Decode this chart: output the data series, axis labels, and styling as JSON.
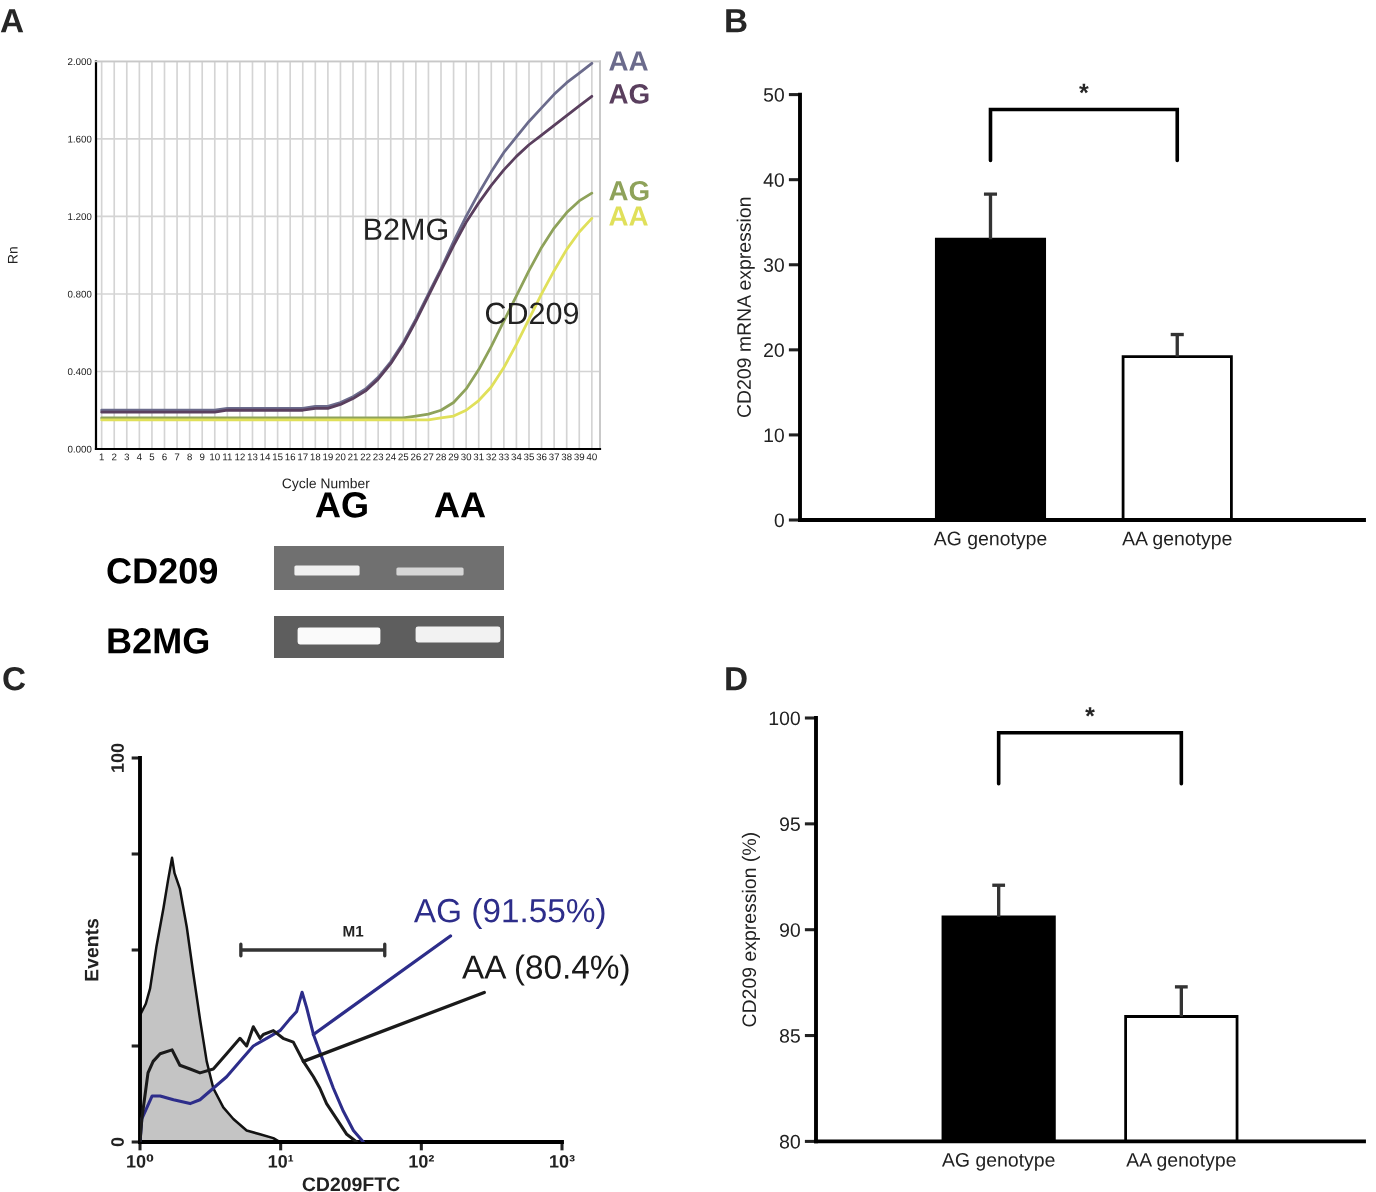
{
  "chart_data": [
    {
      "type": "line",
      "title": "A",
      "xlabel": "Cycle Number",
      "ylabel": "Rn",
      "x": [
        1,
        2,
        3,
        4,
        5,
        6,
        7,
        8,
        9,
        10,
        11,
        12,
        13,
        14,
        15,
        16,
        17,
        18,
        19,
        20,
        21,
        22,
        23,
        24,
        25,
        26,
        27,
        28,
        29,
        30,
        31,
        32,
        33,
        34,
        35,
        36,
        37,
        38,
        39,
        40
      ],
      "series": [
        {
          "name": "AA",
          "color": "#6b6b8c",
          "values": [
            0.2,
            0.2,
            0.2,
            0.2,
            0.2,
            0.2,
            0.2,
            0.2,
            0.2,
            0.2,
            0.21,
            0.21,
            0.21,
            0.21,
            0.21,
            0.21,
            0.21,
            0.22,
            0.22,
            0.24,
            0.27,
            0.31,
            0.37,
            0.45,
            0.55,
            0.67,
            0.8,
            0.93,
            1.07,
            1.2,
            1.32,
            1.43,
            1.53,
            1.61,
            1.69,
            1.76,
            1.83,
            1.89,
            1.94,
            1.99
          ]
        },
        {
          "name": "AG",
          "color": "#5a3f5e",
          "values": [
            0.19,
            0.19,
            0.19,
            0.19,
            0.19,
            0.19,
            0.19,
            0.19,
            0.19,
            0.19,
            0.2,
            0.2,
            0.2,
            0.2,
            0.2,
            0.2,
            0.2,
            0.21,
            0.21,
            0.23,
            0.26,
            0.3,
            0.36,
            0.44,
            0.54,
            0.66,
            0.79,
            0.92,
            1.05,
            1.17,
            1.27,
            1.36,
            1.44,
            1.51,
            1.57,
            1.62,
            1.67,
            1.72,
            1.77,
            1.82
          ]
        },
        {
          "name": "AG",
          "color": "#8ea25a",
          "values": [
            0.16,
            0.16,
            0.16,
            0.16,
            0.16,
            0.16,
            0.16,
            0.16,
            0.16,
            0.16,
            0.16,
            0.16,
            0.16,
            0.16,
            0.16,
            0.16,
            0.16,
            0.16,
            0.16,
            0.16,
            0.16,
            0.16,
            0.16,
            0.16,
            0.16,
            0.17,
            0.18,
            0.2,
            0.24,
            0.31,
            0.41,
            0.53,
            0.66,
            0.79,
            0.92,
            1.04,
            1.14,
            1.22,
            1.28,
            1.32
          ]
        },
        {
          "name": "AA",
          "color": "#e0e05a",
          "values": [
            0.15,
            0.15,
            0.15,
            0.15,
            0.15,
            0.15,
            0.15,
            0.15,
            0.15,
            0.15,
            0.15,
            0.15,
            0.15,
            0.15,
            0.15,
            0.15,
            0.15,
            0.15,
            0.15,
            0.15,
            0.15,
            0.15,
            0.15,
            0.15,
            0.15,
            0.15,
            0.15,
            0.16,
            0.17,
            0.2,
            0.25,
            0.32,
            0.42,
            0.54,
            0.67,
            0.8,
            0.92,
            1.03,
            1.12,
            1.19
          ]
        }
      ],
      "xlim": [
        0.55,
        40.65
      ],
      "ylim": [
        0,
        2.0
      ],
      "xticks": [
        1,
        2,
        3,
        4,
        5,
        6,
        7,
        8,
        9,
        10,
        11,
        12,
        13,
        14,
        15,
        16,
        17,
        18,
        19,
        20,
        21,
        22,
        23,
        24,
        25,
        26,
        27,
        28,
        29,
        30,
        31,
        32,
        33,
        34,
        35,
        36,
        37,
        38,
        39,
        40
      ],
      "yticks": [
        {
          "value": 0,
          "label": "0.000"
        },
        {
          "value": 0.4,
          "label": "0.400"
        },
        {
          "value": 0.8,
          "label": "0.800"
        },
        {
          "value": 1.2,
          "label": "1.200"
        },
        {
          "value": 1.6,
          "label": "1.600"
        },
        {
          "value": 2.0,
          "label": "2.000"
        }
      ],
      "grid": true,
      "annotations": [
        "B2MG",
        "CD209"
      ]
    },
    {
      "type": "other",
      "annotations": [
        "AG",
        "AA",
        "CD209",
        "B2MG"
      ]
    },
    {
      "type": "bar",
      "title": "B",
      "categories": [
        "AG genotype",
        "AA genotype"
      ],
      "values": [
        33,
        19.2
      ],
      "colors": [
        "#000000",
        "#ffffff"
      ],
      "errors": [
        [
          33,
          38.3
        ],
        [
          19.2,
          21.8
        ]
      ],
      "ylabel": "CD209 mRNA expression",
      "ylim": [
        0,
        50
      ],
      "yticks": [
        0,
        10,
        20,
        30,
        40,
        50
      ],
      "annotations": [
        "*"
      ]
    },
    {
      "type": "line",
      "title": "C",
      "xlabel": "CD209FTC",
      "ylabel": "Events",
      "log": "x",
      "xlim": [
        1,
        1000
      ],
      "xticks": [
        {
          "value": 1,
          "label": "10⁰"
        },
        {
          "value": 10,
          "label": "10¹"
        },
        {
          "value": 100,
          "label": "10²"
        },
        {
          "value": 1000,
          "label": "10³"
        }
      ],
      "ylim": [
        0,
        100
      ],
      "yticks": [
        0,
        {
          "value": 25,
          "label": null
        },
        {
          "value": 50,
          "label": null
        },
        {
          "value": 75,
          "label": null
        },
        100
      ],
      "series": [
        {
          "type": "area",
          "color": "#c4c4c4",
          "x": [
            1.0,
            1.1,
            1.18,
            1.31,
            1.47,
            1.58,
            1.69,
            1.76,
            1.92,
            2.15,
            2.39,
            2.67,
            2.98,
            3.32,
            3.91,
            4.61,
            5.73,
            7.13,
            8.87,
            9.89
          ],
          "values": [
            33,
            36,
            40,
            51,
            61,
            68,
            74,
            70,
            66,
            56,
            44,
            32,
            21,
            14,
            9,
            6,
            3,
            2,
            1,
            0
          ]
        },
        {
          "name": "AG (91.55%)",
          "color": "#2d2d8a",
          "x": [
            1.0,
            1.03,
            1.22,
            1.39,
            1.73,
            2.27,
            2.67,
            3.32,
            4.13,
            5.14,
            6.39,
            7.95,
            9.89,
            11.6,
            13.0,
            14.2,
            15.3,
            17.1,
            20.1,
            23.7,
            27.9,
            32.9,
            38.7
          ],
          "values": [
            0,
            6,
            12,
            12,
            11,
            10,
            11,
            14,
            17,
            21,
            25,
            27,
            29,
            32,
            34,
            39,
            35,
            28,
            21,
            14,
            8,
            3,
            0
          ]
        },
        {
          "name": "AA (80.4%)",
          "color": "#1a1a1a",
          "x": [
            1.0,
            1.03,
            1.14,
            1.24,
            1.39,
            1.69,
            1.92,
            2.27,
            2.67,
            3.32,
            4.13,
            5.14,
            5.73,
            6.39,
            7.13,
            7.53,
            8.87,
            10.4,
            12.3,
            14.5,
            17.1,
            19.0,
            21.2,
            25.0,
            29.5,
            34.7
          ],
          "values": [
            0,
            6,
            18,
            21,
            23,
            24,
            20,
            19,
            18,
            19,
            23,
            27,
            25,
            30,
            27,
            28,
            29,
            27,
            26,
            21,
            17,
            14,
            10,
            6,
            2,
            0
          ]
        }
      ],
      "annotations": [
        "M1"
      ]
    },
    {
      "type": "bar",
      "title": "D",
      "categories": [
        "AG genotype",
        "AA genotype"
      ],
      "values": [
        90.6,
        85.9
      ],
      "colors": [
        "#000000",
        "#ffffff"
      ],
      "errors": [
        [
          90.6,
          92.1
        ],
        [
          85.9,
          87.3
        ]
      ],
      "ylabel": "CD209 expression (%)",
      "ylim": [
        80,
        100
      ],
      "yticks": [
        80,
        85,
        90,
        95,
        100
      ],
      "annotations": [
        "*"
      ]
    }
  ]
}
